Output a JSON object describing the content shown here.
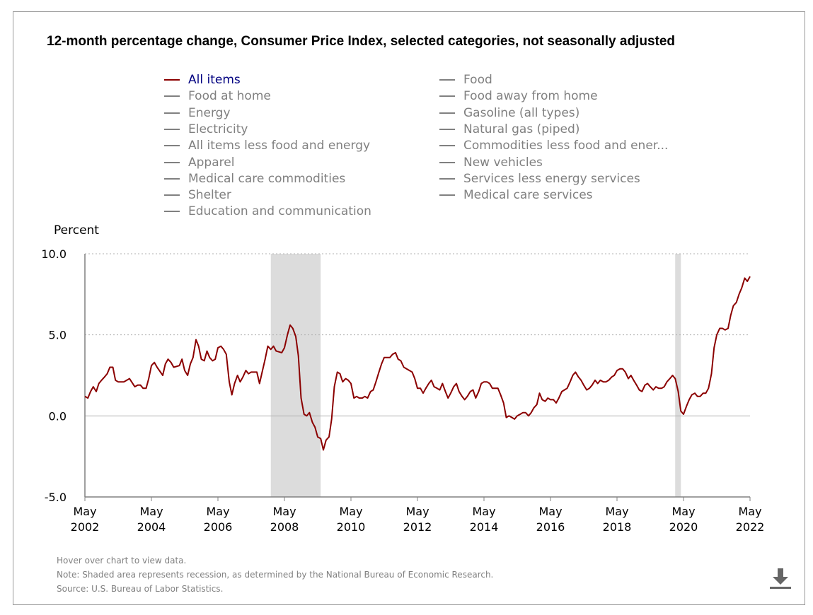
{
  "chart_data": {
    "type": "line",
    "title": "12-month percentage change, Consumer Price Index, selected categories, not seasonally adjusted",
    "ylabel": "Percent",
    "ylim": [
      -5.0,
      10.0
    ],
    "yticks": [
      "10.0",
      "5.0",
      "0.0",
      "-5.0"
    ],
    "ytick_values": [
      10,
      5,
      0,
      -5
    ],
    "x_range": [
      2002.33,
      2022.33
    ],
    "xticks": [
      {
        "value": 2002.33,
        "month": "May",
        "year": "2002"
      },
      {
        "value": 2004.33,
        "month": "May",
        "year": "2004"
      },
      {
        "value": 2006.33,
        "month": "May",
        "year": "2006"
      },
      {
        "value": 2008.33,
        "month": "May",
        "year": "2008"
      },
      {
        "value": 2010.33,
        "month": "May",
        "year": "2010"
      },
      {
        "value": 2012.33,
        "month": "May",
        "year": "2012"
      },
      {
        "value": 2014.33,
        "month": "May",
        "year": "2014"
      },
      {
        "value": 2016.33,
        "month": "May",
        "year": "2016"
      },
      {
        "value": 2018.33,
        "month": "May",
        "year": "2018"
      },
      {
        "value": 2020.33,
        "month": "May",
        "year": "2020"
      },
      {
        "value": 2022.33,
        "month": "May",
        "year": "2022"
      }
    ],
    "recessions": [
      [
        2007.92,
        2009.42
      ],
      [
        2020.08,
        2020.25
      ]
    ],
    "grid": "horizontal dotted",
    "series": [
      {
        "name": "All items",
        "color": "#8b0000",
        "points": [
          [
            2002.33,
            1.2
          ],
          [
            2002.42,
            1.1
          ],
          [
            2002.5,
            1.5
          ],
          [
            2002.58,
            1.8
          ],
          [
            2002.67,
            1.5
          ],
          [
            2002.75,
            2.0
          ],
          [
            2002.83,
            2.2
          ],
          [
            2002.92,
            2.4
          ],
          [
            2003.0,
            2.6
          ],
          [
            2003.08,
            3.0
          ],
          [
            2003.17,
            3.0
          ],
          [
            2003.25,
            2.2
          ],
          [
            2003.33,
            2.1
          ],
          [
            2003.5,
            2.1
          ],
          [
            2003.67,
            2.3
          ],
          [
            2003.83,
            1.8
          ],
          [
            2003.92,
            1.9
          ],
          [
            2004.0,
            1.9
          ],
          [
            2004.08,
            1.7
          ],
          [
            2004.17,
            1.7
          ],
          [
            2004.25,
            2.3
          ],
          [
            2004.33,
            3.1
          ],
          [
            2004.42,
            3.3
          ],
          [
            2004.5,
            3.0
          ],
          [
            2004.67,
            2.5
          ],
          [
            2004.75,
            3.2
          ],
          [
            2004.83,
            3.5
          ],
          [
            2004.92,
            3.3
          ],
          [
            2005.0,
            3.0
          ],
          [
            2005.17,
            3.1
          ],
          [
            2005.25,
            3.5
          ],
          [
            2005.33,
            2.8
          ],
          [
            2005.42,
            2.5
          ],
          [
            2005.5,
            3.2
          ],
          [
            2005.58,
            3.6
          ],
          [
            2005.67,
            4.7
          ],
          [
            2005.75,
            4.3
          ],
          [
            2005.83,
            3.5
          ],
          [
            2005.92,
            3.4
          ],
          [
            2006.0,
            4.0
          ],
          [
            2006.08,
            3.6
          ],
          [
            2006.17,
            3.4
          ],
          [
            2006.25,
            3.5
          ],
          [
            2006.33,
            4.2
          ],
          [
            2006.42,
            4.3
          ],
          [
            2006.5,
            4.1
          ],
          [
            2006.58,
            3.8
          ],
          [
            2006.67,
            2.1
          ],
          [
            2006.75,
            1.3
          ],
          [
            2006.83,
            2.0
          ],
          [
            2006.92,
            2.5
          ],
          [
            2007.0,
            2.1
          ],
          [
            2007.08,
            2.4
          ],
          [
            2007.17,
            2.8
          ],
          [
            2007.25,
            2.6
          ],
          [
            2007.33,
            2.7
          ],
          [
            2007.5,
            2.7
          ],
          [
            2007.58,
            2.0
          ],
          [
            2007.67,
            2.8
          ],
          [
            2007.75,
            3.5
          ],
          [
            2007.83,
            4.3
          ],
          [
            2007.92,
            4.1
          ],
          [
            2008.0,
            4.3
          ],
          [
            2008.08,
            4.0
          ],
          [
            2008.25,
            3.9
          ],
          [
            2008.33,
            4.2
          ],
          [
            2008.42,
            5.0
          ],
          [
            2008.5,
            5.6
          ],
          [
            2008.58,
            5.4
          ],
          [
            2008.67,
            4.9
          ],
          [
            2008.75,
            3.7
          ],
          [
            2008.83,
            1.1
          ],
          [
            2008.92,
            0.1
          ],
          [
            2009.0,
            0.0
          ],
          [
            2009.08,
            0.2
          ],
          [
            2009.17,
            -0.4
          ],
          [
            2009.25,
            -0.7
          ],
          [
            2009.33,
            -1.3
          ],
          [
            2009.42,
            -1.4
          ],
          [
            2009.5,
            -2.1
          ],
          [
            2009.58,
            -1.5
          ],
          [
            2009.67,
            -1.3
          ],
          [
            2009.75,
            -0.2
          ],
          [
            2009.83,
            1.8
          ],
          [
            2009.92,
            2.7
          ],
          [
            2010.0,
            2.6
          ],
          [
            2010.08,
            2.1
          ],
          [
            2010.17,
            2.3
          ],
          [
            2010.25,
            2.2
          ],
          [
            2010.33,
            2.0
          ],
          [
            2010.42,
            1.1
          ],
          [
            2010.5,
            1.2
          ],
          [
            2010.58,
            1.1
          ],
          [
            2010.67,
            1.1
          ],
          [
            2010.75,
            1.2
          ],
          [
            2010.83,
            1.1
          ],
          [
            2010.92,
            1.5
          ],
          [
            2011.0,
            1.6
          ],
          [
            2011.08,
            2.1
          ],
          [
            2011.17,
            2.7
          ],
          [
            2011.25,
            3.2
          ],
          [
            2011.33,
            3.6
          ],
          [
            2011.5,
            3.6
          ],
          [
            2011.58,
            3.8
          ],
          [
            2011.67,
            3.9
          ],
          [
            2011.75,
            3.5
          ],
          [
            2011.83,
            3.4
          ],
          [
            2011.92,
            3.0
          ],
          [
            2012.17,
            2.7
          ],
          [
            2012.25,
            2.3
          ],
          [
            2012.33,
            1.7
          ],
          [
            2012.42,
            1.7
          ],
          [
            2012.5,
            1.4
          ],
          [
            2012.58,
            1.7
          ],
          [
            2012.67,
            2.0
          ],
          [
            2012.75,
            2.2
          ],
          [
            2012.83,
            1.8
          ],
          [
            2012.92,
            1.7
          ],
          [
            2013.0,
            1.6
          ],
          [
            2013.08,
            2.0
          ],
          [
            2013.17,
            1.5
          ],
          [
            2013.25,
            1.1
          ],
          [
            2013.33,
            1.4
          ],
          [
            2013.42,
            1.8
          ],
          [
            2013.5,
            2.0
          ],
          [
            2013.58,
            1.5
          ],
          [
            2013.67,
            1.2
          ],
          [
            2013.75,
            1.0
          ],
          [
            2013.83,
            1.2
          ],
          [
            2013.92,
            1.5
          ],
          [
            2014.0,
            1.6
          ],
          [
            2014.08,
            1.1
          ],
          [
            2014.17,
            1.5
          ],
          [
            2014.25,
            2.0
          ],
          [
            2014.33,
            2.1
          ],
          [
            2014.42,
            2.1
          ],
          [
            2014.5,
            2.0
          ],
          [
            2014.58,
            1.7
          ],
          [
            2014.67,
            1.7
          ],
          [
            2014.75,
            1.7
          ],
          [
            2014.83,
            1.3
          ],
          [
            2014.92,
            0.8
          ],
          [
            2015.0,
            -0.1
          ],
          [
            2015.08,
            0.0
          ],
          [
            2015.17,
            -0.1
          ],
          [
            2015.25,
            -0.2
          ],
          [
            2015.33,
            0.0
          ],
          [
            2015.42,
            0.1
          ],
          [
            2015.5,
            0.2
          ],
          [
            2015.58,
            0.2
          ],
          [
            2015.67,
            0.0
          ],
          [
            2015.75,
            0.2
          ],
          [
            2015.83,
            0.5
          ],
          [
            2015.92,
            0.7
          ],
          [
            2016.0,
            1.4
          ],
          [
            2016.08,
            1.0
          ],
          [
            2016.17,
            0.9
          ],
          [
            2016.25,
            1.1
          ],
          [
            2016.33,
            1.0
          ],
          [
            2016.42,
            1.0
          ],
          [
            2016.5,
            0.8
          ],
          [
            2016.58,
            1.1
          ],
          [
            2016.67,
            1.5
          ],
          [
            2016.75,
            1.6
          ],
          [
            2016.83,
            1.7
          ],
          [
            2016.92,
            2.1
          ],
          [
            2017.0,
            2.5
          ],
          [
            2017.08,
            2.7
          ],
          [
            2017.17,
            2.4
          ],
          [
            2017.25,
            2.2
          ],
          [
            2017.33,
            1.9
          ],
          [
            2017.42,
            1.6
          ],
          [
            2017.5,
            1.7
          ],
          [
            2017.58,
            1.9
          ],
          [
            2017.67,
            2.2
          ],
          [
            2017.75,
            2.0
          ],
          [
            2017.83,
            2.2
          ],
          [
            2017.92,
            2.1
          ],
          [
            2018.0,
            2.1
          ],
          [
            2018.08,
            2.2
          ],
          [
            2018.17,
            2.4
          ],
          [
            2018.25,
            2.5
          ],
          [
            2018.33,
            2.8
          ],
          [
            2018.42,
            2.9
          ],
          [
            2018.5,
            2.9
          ],
          [
            2018.58,
            2.7
          ],
          [
            2018.67,
            2.3
          ],
          [
            2018.75,
            2.5
          ],
          [
            2018.83,
            2.2
          ],
          [
            2018.92,
            1.9
          ],
          [
            2019.0,
            1.6
          ],
          [
            2019.08,
            1.5
          ],
          [
            2019.17,
            1.9
          ],
          [
            2019.25,
            2.0
          ],
          [
            2019.33,
            1.8
          ],
          [
            2019.42,
            1.6
          ],
          [
            2019.5,
            1.8
          ],
          [
            2019.58,
            1.7
          ],
          [
            2019.67,
            1.7
          ],
          [
            2019.75,
            1.8
          ],
          [
            2019.83,
            2.1
          ],
          [
            2019.92,
            2.3
          ],
          [
            2020.0,
            2.5
          ],
          [
            2020.08,
            2.3
          ],
          [
            2020.17,
            1.5
          ],
          [
            2020.25,
            0.3
          ],
          [
            2020.33,
            0.1
          ],
          [
            2020.42,
            0.6
          ],
          [
            2020.5,
            1.0
          ],
          [
            2020.58,
            1.3
          ],
          [
            2020.67,
            1.4
          ],
          [
            2020.75,
            1.2
          ],
          [
            2020.83,
            1.2
          ],
          [
            2020.92,
            1.4
          ],
          [
            2021.0,
            1.4
          ],
          [
            2021.08,
            1.7
          ],
          [
            2021.17,
            2.6
          ],
          [
            2021.25,
            4.2
          ],
          [
            2021.33,
            5.0
          ],
          [
            2021.42,
            5.4
          ],
          [
            2021.5,
            5.4
          ],
          [
            2021.58,
            5.3
          ],
          [
            2021.67,
            5.4
          ],
          [
            2021.75,
            6.2
          ],
          [
            2021.83,
            6.8
          ],
          [
            2021.92,
            7.0
          ],
          [
            2022.0,
            7.5
          ],
          [
            2022.08,
            7.9
          ],
          [
            2022.17,
            8.5
          ],
          [
            2022.25,
            8.3
          ],
          [
            2022.33,
            8.6
          ]
        ]
      }
    ],
    "legend": {
      "placement": "top",
      "items": [
        {
          "label": "All items",
          "active": true
        },
        {
          "label": "Food",
          "active": false
        },
        {
          "label": "Food at home",
          "active": false
        },
        {
          "label": "Food away from home",
          "active": false
        },
        {
          "label": "Energy",
          "active": false
        },
        {
          "label": "Gasoline (all types)",
          "active": false
        },
        {
          "label": "Electricity",
          "active": false
        },
        {
          "label": "Natural gas (piped)",
          "active": false
        },
        {
          "label": "All items less food and energy",
          "active": false
        },
        {
          "label": "Commodities less food and ener...",
          "active": false
        },
        {
          "label": "Apparel",
          "active": false
        },
        {
          "label": "New vehicles",
          "active": false
        },
        {
          "label": "Medical care commodities",
          "active": false
        },
        {
          "label": "Services less energy services",
          "active": false
        },
        {
          "label": "Shelter",
          "active": false
        },
        {
          "label": "Medical care services",
          "active": false
        },
        {
          "label": "Education and communication",
          "active": false
        }
      ]
    },
    "colors": {
      "active_line": "#8b0000",
      "active_legend_text": "#000080",
      "inactive_legend": "#808080",
      "recession_fill": "#dcdcdc",
      "gridline": "#b0b0b0",
      "axis": "#808080"
    }
  },
  "footer": {
    "hint": "Hover over chart to view data.",
    "note": "Note: Shaded area represents recession, as determined by the National Bureau of Economic Research.",
    "source": "Source: U.S. Bureau of Labor Statistics."
  },
  "toolbar": {
    "download_icon": "download-icon"
  }
}
